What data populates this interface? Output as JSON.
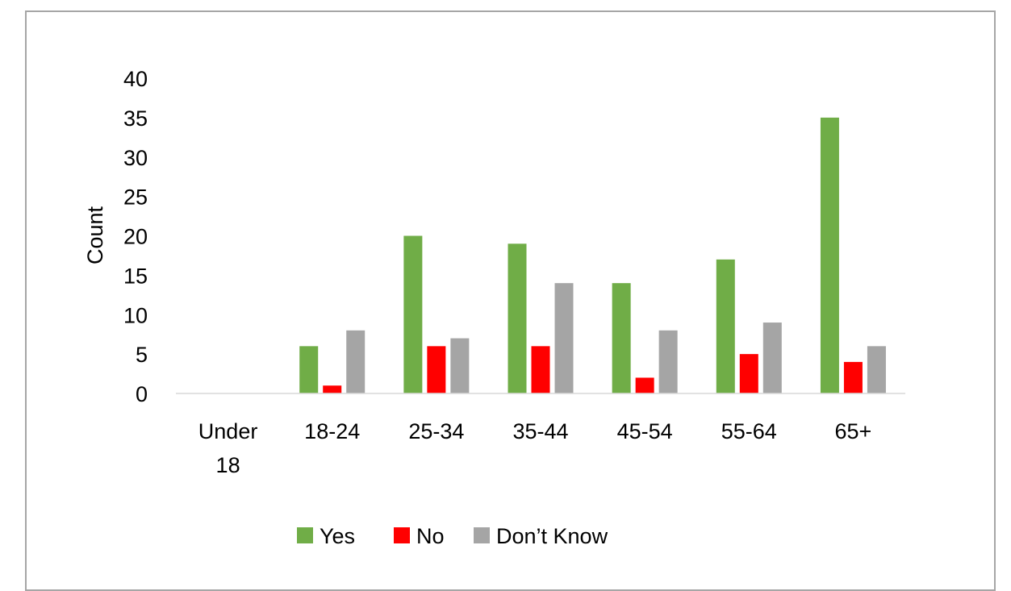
{
  "chart_data": {
    "type": "bar",
    "categories": [
      [
        "Under",
        "18"
      ],
      [
        "18-24"
      ],
      [
        "25-34"
      ],
      [
        "35-44"
      ],
      [
        "45-54"
      ],
      [
        "55-64"
      ],
      [
        "65+"
      ]
    ],
    "series": [
      {
        "name": "Yes",
        "color": "#70ad47",
        "values": [
          0,
          6,
          20,
          19,
          14,
          17,
          35
        ]
      },
      {
        "name": "No",
        "color": "#ff0000",
        "values": [
          0,
          1,
          6,
          6,
          2,
          5,
          4
        ]
      },
      {
        "name": "Don’t Know",
        "color": "#a5a5a5",
        "values": [
          0,
          8,
          7,
          14,
          8,
          9,
          6
        ]
      }
    ],
    "title": "",
    "xlabel": "",
    "ylabel": "Count",
    "ylim": [
      0,
      40
    ],
    "yticks": [
      0,
      5,
      10,
      15,
      20,
      25,
      30,
      35,
      40
    ],
    "grid": false,
    "legend": "bottom"
  }
}
